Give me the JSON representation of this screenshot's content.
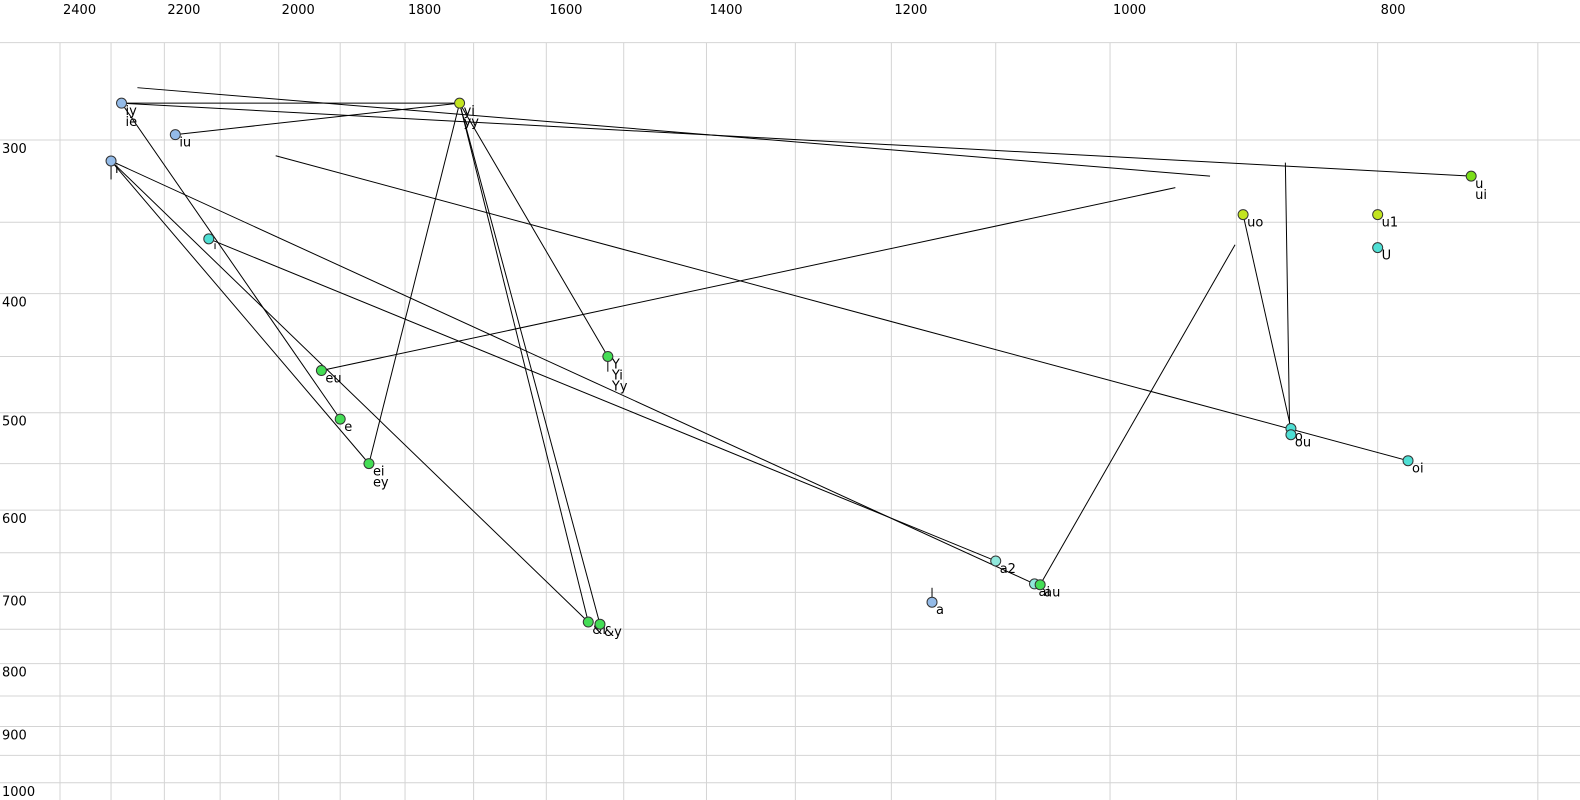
{
  "chart_data": {
    "type": "scatter",
    "title": "",
    "description_colors": {
      "blue": "#94bbe8",
      "cyan": "#90e8dc",
      "turquoise": "#4fdfd4",
      "green": "#44dd55",
      "yellowgreen": "#c2e420",
      "greenyellow": "#7ade18",
      "line": "#000000",
      "grid": "#d4d4d4",
      "text": "#000000"
    },
    "x_axis": {
      "tick_labels": [
        2400,
        2200,
        2000,
        1800,
        1600,
        1400,
        1200,
        1000,
        800
      ],
      "grid_values": [
        2400,
        2300,
        2200,
        2100,
        2000,
        1900,
        1800,
        1700,
        1600,
        1500,
        1400,
        1300,
        1200,
        1100,
        1000,
        900,
        800,
        700
      ],
      "scale": "log",
      "reversed": true,
      "range": [
        2400,
        676
      ]
    },
    "y_axis": {
      "tick_labels": [
        300,
        400,
        500,
        600,
        700,
        800,
        900,
        1000
      ],
      "grid_values": [
        250,
        300,
        350,
        400,
        450,
        500,
        550,
        600,
        650,
        700,
        750,
        800,
        850,
        900,
        950,
        1000
      ],
      "scale": "log",
      "range": [
        250,
        1032
      ]
    },
    "points": [
      {
        "labels": [
          "iy",
          "ie"
        ],
        "f2": 2280,
        "f1": 280,
        "color": "blue"
      },
      {
        "labels": [
          "iu"
        ],
        "f2": 2180,
        "f1": 297,
        "color": "blue"
      },
      {
        "labels": [
          "i"
        ],
        "f2": 2300,
        "f1": 312,
        "color": "blue"
      },
      {
        "labels": [],
        "f2": 2120,
        "f1": 361,
        "color": "turquoise"
      },
      {
        "labels": [
          "eu"
        ],
        "f2": 1930,
        "f1": 462,
        "color": "green"
      },
      {
        "labels": [
          "e"
        ],
        "f2": 1900,
        "f1": 506,
        "color": "green"
      },
      {
        "labels": [
          "ei",
          "ey"
        ],
        "f2": 1855,
        "f1": 550,
        "color": "green"
      },
      {
        "labels": [
          "yi",
          "yy"
        ],
        "f2": 1720,
        "f1": 280,
        "color": "yellowgreen"
      },
      {
        "labels": [
          "Y",
          "Yi",
          "Yy"
        ],
        "f2": 1520,
        "f1": 450,
        "color": "green"
      },
      {
        "labels": [
          "&i"
        ],
        "f2": 1545,
        "f1": 740,
        "color": "green"
      },
      {
        "labels": [
          "&y"
        ],
        "f2": 1530,
        "f1": 743,
        "color": "green"
      },
      {
        "labels": [
          "a2"
        ],
        "f2": 1100,
        "f1": 660,
        "color": "cyan"
      },
      {
        "labels": [
          "a"
        ],
        "f2": 1160,
        "f1": 713,
        "color": "blue"
      },
      {
        "labels": [
          "ai"
        ],
        "f2": 1065,
        "f1": 689,
        "color": "cyan"
      },
      {
        "labels": [
          "au"
        ],
        "f2": 1060,
        "f1": 690,
        "color": "green"
      },
      {
        "labels": [
          "uo"
        ],
        "f2": 895,
        "f1": 345,
        "color": "yellowgreen"
      },
      {
        "labels": [
          "u1"
        ],
        "f2": 800,
        "f1": 345,
        "color": "yellowgreen"
      },
      {
        "labels": [
          "U"
        ],
        "f2": 800,
        "f1": 367,
        "color": "turquoise"
      },
      {
        "labels": [
          "o"
        ],
        "f2": 860,
        "f1": 515,
        "color": "turquoise"
      },
      {
        "labels": [
          "ou"
        ],
        "f2": 860,
        "f1": 521,
        "color": "turquoise"
      },
      {
        "labels": [
          "oi"
        ],
        "f2": 780,
        "f1": 547,
        "color": "turquoise"
      },
      {
        "labels": [
          "u",
          "ui"
        ],
        "f2": 740,
        "f1": 321,
        "color": "greenyellow"
      }
    ],
    "trajectory_lines": [
      {
        "from": [
          2280,
          280
        ],
        "to": [
          1720,
          280
        ]
      },
      {
        "from": [
          2180,
          297
        ],
        "to": [
          1720,
          280
        ]
      },
      {
        "from": [
          1720,
          280
        ],
        "to": [
          1855,
          550
        ]
      },
      {
        "from": [
          1720,
          280
        ],
        "to": [
          1520,
          450
        ]
      },
      {
        "from": [
          1720,
          280
        ],
        "to": [
          1545,
          740
        ]
      },
      {
        "from": [
          1720,
          280
        ],
        "to": [
          1530,
          743
        ]
      },
      {
        "from": [
          2280,
          280
        ],
        "to": [
          740,
          321
        ]
      },
      {
        "from": [
          2250,
          272
        ],
        "to": [
          920,
          321
        ]
      },
      {
        "from": [
          1930,
          462
        ],
        "to": [
          947,
          328
        ]
      },
      {
        "from": [
          2300,
          312
        ],
        "to": [
          1065,
          689
        ]
      },
      {
        "from": [
          2120,
          361
        ],
        "to": [
          1100,
          660
        ]
      },
      {
        "from": [
          2300,
          312
        ],
        "to": [
          1855,
          550
        ]
      },
      {
        "from": [
          2300,
          312
        ],
        "to": [
          1545,
          740
        ]
      },
      {
        "from": [
          2280,
          280
        ],
        "to": [
          1900,
          506
        ]
      },
      {
        "from": [
          895,
          345
        ],
        "to": [
          860,
          515
        ]
      },
      {
        "from": [
          2005,
          309
        ],
        "to": [
          780,
          547
        ]
      },
      {
        "from": [
          864,
          313
        ],
        "to": [
          861,
          511
        ]
      },
      {
        "from": [
          1060,
          690
        ],
        "to": [
          901,
          365
        ]
      },
      {
        "from": [
          2300,
          309
        ],
        "to": [
          2300,
          323
        ]
      },
      {
        "from": [
          2109,
          364
        ],
        "to": [
          2109,
          368
        ]
      },
      {
        "from": [
          1160,
          694
        ],
        "to": [
          1160,
          712
        ]
      },
      {
        "from": [
          1520,
          451
        ],
        "to": [
          1520,
          463
        ]
      }
    ]
  }
}
